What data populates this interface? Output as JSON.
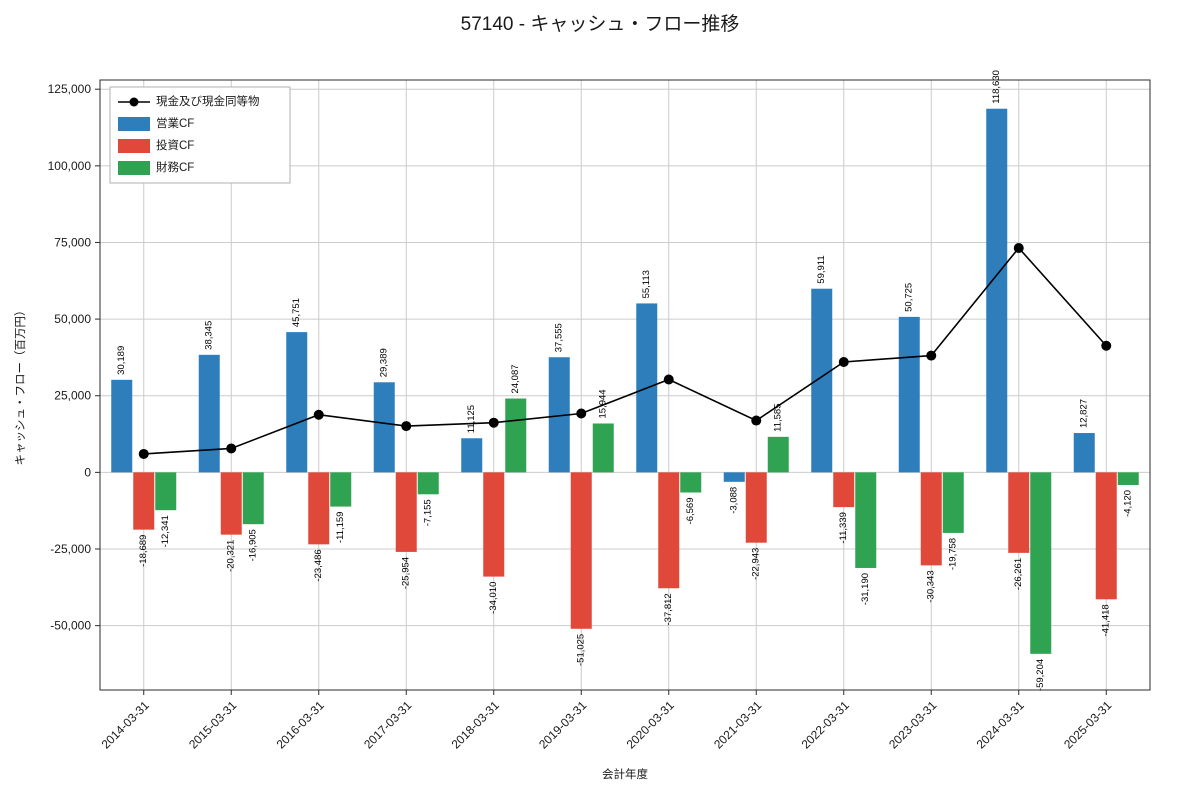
{
  "window": {
    "title": "57140 - キャッシュ・フロー推移"
  },
  "chart_data": {
    "type": "bar",
    "title": "57140 - キャッシュ・フロー推移",
    "xlabel": "会計年度",
    "ylabel": "キャッシュ・フロー（百万円）",
    "categories": [
      "2014-03-31",
      "2015-03-31",
      "2016-03-31",
      "2017-03-31",
      "2018-03-31",
      "2019-03-31",
      "2020-03-31",
      "2021-03-31",
      "2022-03-31",
      "2023-03-31",
      "2024-03-31",
      "2025-03-31"
    ],
    "bar_series": [
      {
        "name": "営業CF",
        "color": "#2e7ebc",
        "values": [
          30189,
          38345,
          45751,
          29389,
          11125,
          37555,
          55113,
          -3088,
          59911,
          50725,
          118630,
          12827
        ]
      },
      {
        "name": "投資CF",
        "color": "#e0493a",
        "values": [
          -18689,
          -20321,
          -23486,
          -25954,
          -34010,
          -51025,
          -37812,
          -22943,
          -11339,
          -30343,
          -26261,
          -41418
        ]
      },
      {
        "name": "財務CF",
        "color": "#2fa351",
        "values": [
          -12341,
          -16905,
          -11159,
          -7155,
          24087,
          15944,
          -6569,
          11585,
          -31190,
          -19758,
          -59204,
          -4120
        ]
      }
    ],
    "line_series": {
      "name": "現金及び現金同等物",
      "color": "#000000",
      "values": [
        6000,
        7800,
        18800,
        15100,
        16200,
        19200,
        30300,
        16900,
        36000,
        38100,
        73200,
        41300
      ]
    },
    "ylim": [
      -71000,
      128000
    ],
    "yticks": [
      -50000,
      -25000,
      0,
      25000,
      50000,
      75000,
      100000,
      125000
    ],
    "grid": true,
    "legend_position": "upper-left"
  }
}
